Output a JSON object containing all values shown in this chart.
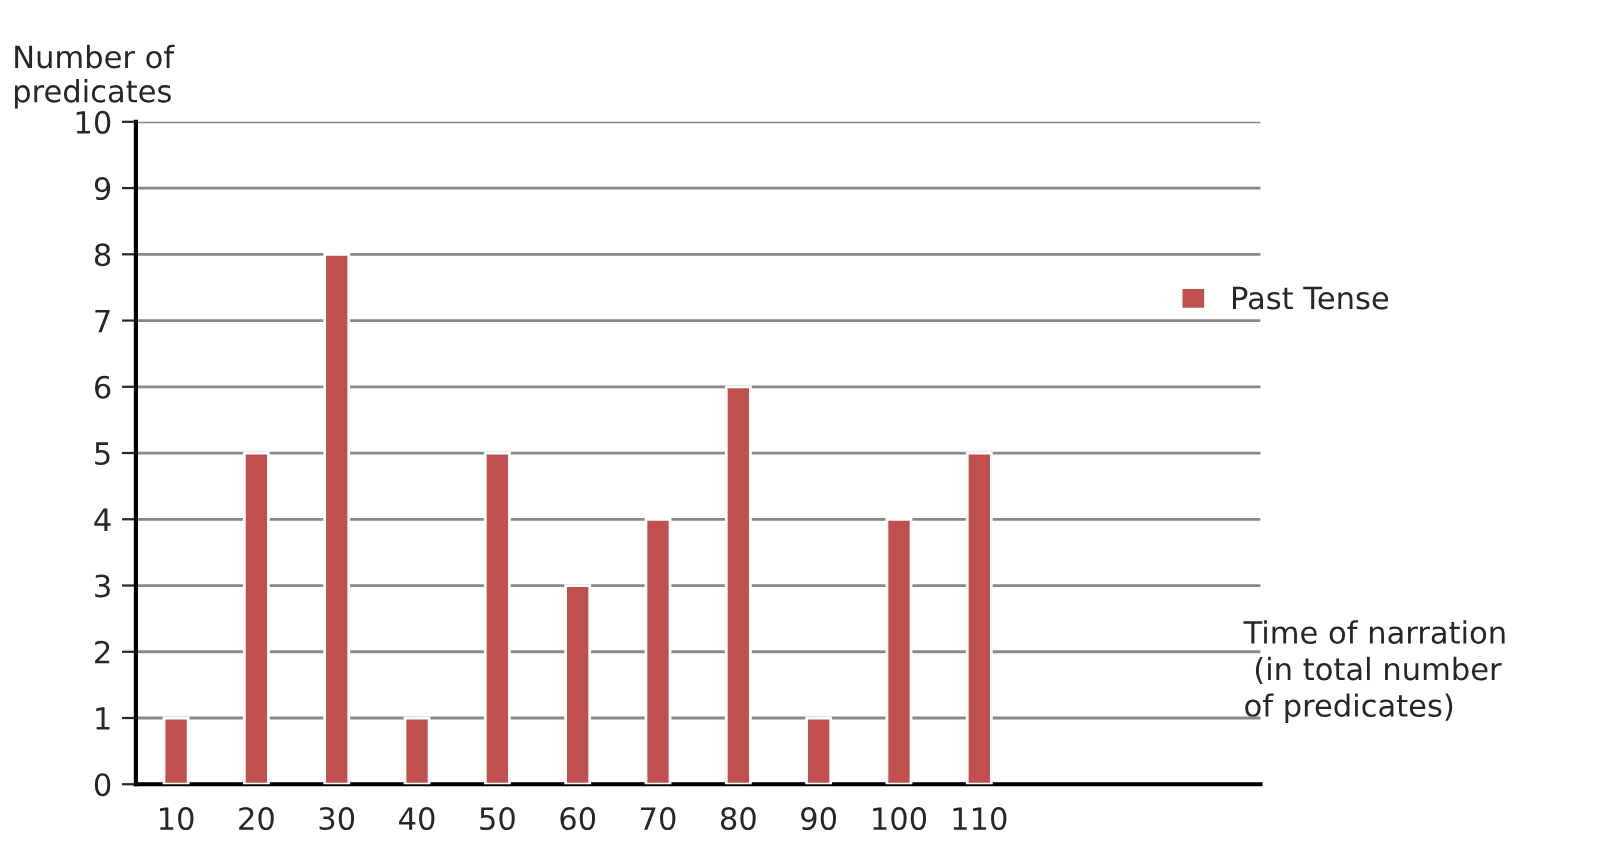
{
  "chart_data": {
    "type": "bar",
    "ylabel": "Number of\npredicates",
    "xlabel": "Time of narration\n (in total number\nof predicates)",
    "categories": [
      "10",
      "20",
      "30",
      "40",
      "50",
      "60",
      "70",
      "80",
      "90",
      "100",
      "110",
      null,
      null,
      null
    ],
    "series": [
      {
        "name": "Past Tense",
        "color": "#c0504d",
        "values": [
          1,
          5,
          8,
          1,
          5,
          3,
          4,
          6,
          1,
          4,
          5,
          null,
          null,
          null
        ]
      }
    ],
    "ylim": [
      0,
      10
    ],
    "yticks": [
      0,
      1,
      2,
      3,
      4,
      5,
      6,
      7,
      8,
      9,
      10
    ],
    "grid": "y",
    "legend": "right"
  }
}
